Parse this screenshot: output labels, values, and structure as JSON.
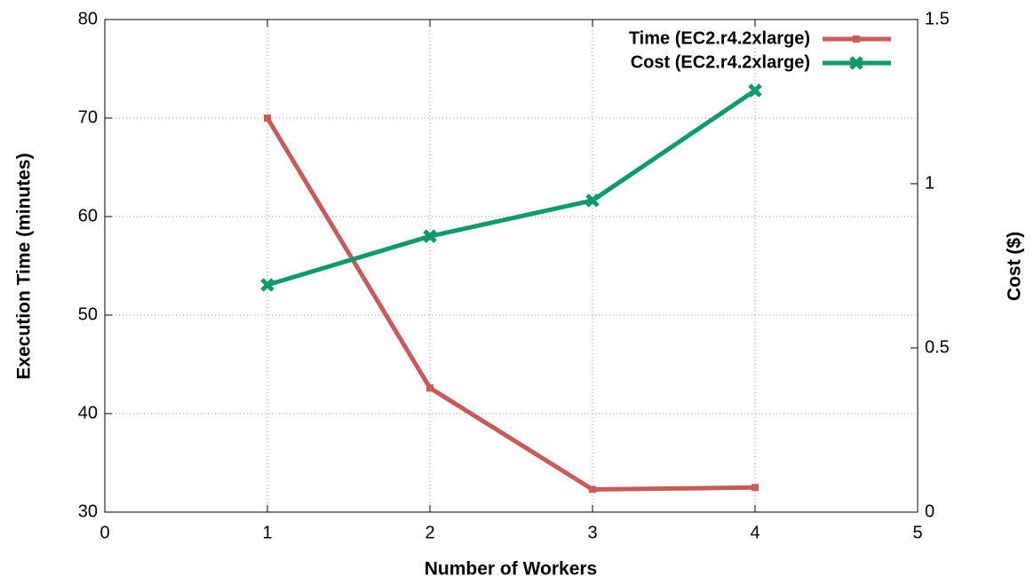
{
  "chart_data": {
    "type": "line",
    "x_label": "Number of Workers",
    "y_label": "Execution Time (minutes)",
    "y2_label": "Cost ($)",
    "x": [
      1,
      2,
      3,
      4
    ],
    "series": [
      {
        "name": "Time (EC2.r4.2xlarge)",
        "color": "#c85a5a",
        "marker": "square",
        "values": [
          70,
          42.6,
          32.3,
          32.5
        ]
      },
      {
        "name": "Cost (EC2.r4.2xlarge)",
        "color": "#0d9b6a",
        "marker": "cross",
        "axis": "y2",
        "values": [
          0.692,
          0.84,
          0.949,
          1.284
        ]
      }
    ],
    "xlim": [
      0,
      5
    ],
    "xticks": [
      0,
      1,
      2,
      3,
      4,
      5
    ],
    "ylim": [
      30,
      80
    ],
    "yticks": [
      30,
      40,
      50,
      60,
      70,
      80
    ],
    "y2lim": [
      0,
      1.5
    ],
    "y2ticks": [
      0,
      0.5,
      1,
      1.5
    ],
    "grid": true,
    "legend": "top-right"
  }
}
